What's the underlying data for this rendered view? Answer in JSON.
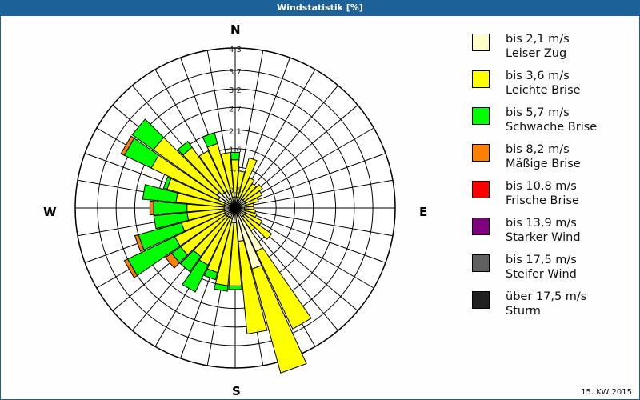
{
  "window": {
    "title": "Windstatistik [%]"
  },
  "footer": {
    "period": "15. KW 2015"
  },
  "compass": {
    "n": "N",
    "e": "E",
    "s": "S",
    "w": "W"
  },
  "legend": [
    {
      "range": "bis 2,1 m/s",
      "name": "Leiser Zug",
      "color": "#ffffc8"
    },
    {
      "range": "bis 3,6 m/s",
      "name": "Leichte Brise",
      "color": "#ffff00"
    },
    {
      "range": "bis 5,7 m/s",
      "name": "Schwache Brise",
      "color": "#00ff00"
    },
    {
      "range": "bis 8,2 m/s",
      "name": "Mäßige Brise",
      "color": "#ff8000"
    },
    {
      "range": "bis 10,8 m/s",
      "name": "Frische Brise",
      "color": "#ff0000"
    },
    {
      "range": "bis 13,9 m/s",
      "name": "Starker Wind",
      "color": "#800080"
    },
    {
      "range": "bis 17,5 m/s",
      "name": "Steifer Wind",
      "color": "#606060"
    },
    {
      "range": "über 17,5 m/s",
      "name": "Sturm",
      "color": "#202020"
    }
  ],
  "chart_data": {
    "type": "wind-rose",
    "title": "Windstatistik [%]",
    "subtitle": "15. KW 2015",
    "radial_ticks": [
      0.5,
      1.1,
      1.6,
      2.1,
      2.7,
      3.2,
      3.7,
      4.3
    ],
    "rmax": 4.3,
    "directions_deg": [
      0,
      10,
      20,
      30,
      40,
      50,
      60,
      70,
      80,
      90,
      100,
      110,
      120,
      130,
      140,
      150,
      160,
      170,
      180,
      190,
      200,
      210,
      220,
      230,
      240,
      250,
      260,
      270,
      280,
      290,
      300,
      310,
      320,
      330,
      340,
      350
    ],
    "series": [
      {
        "name": "bis 2,1 m/s",
        "values": [
          0.3,
          0.3,
          0.3,
          0.3,
          0.3,
          0.3,
          0.3,
          0.3,
          0.3,
          0.25,
          0.25,
          0.3,
          0.3,
          0.3,
          0.3,
          1.3,
          1.7,
          0.9,
          0.4,
          0.4,
          0.3,
          0.3,
          0.3,
          0.3,
          0.3,
          0.3,
          0.3,
          0.3,
          0.3,
          0.3,
          0.5,
          0.6,
          0.5,
          0.5,
          0.4,
          0.3
        ]
      },
      {
        "name": "bis 3,6 m/s",
        "values": [
          1.0,
          0.7,
          1.1,
          0.6,
          0.5,
          0.6,
          0.5,
          0.35,
          0.2,
          0.25,
          0.3,
          0.3,
          0.5,
          0.9,
          0.45,
          2.3,
          2.9,
          2.5,
          1.7,
          1.7,
          1.5,
          1.4,
          1.3,
          1.5,
          1.5,
          1.2,
          1.0,
          1.0,
          1.3,
          1.6,
          2.0,
          2.1,
          1.5,
          1.2,
          1.4,
          1.2
        ]
      },
      {
        "name": "bis 5,7 m/s",
        "values": [
          0.2,
          0,
          0,
          0,
          0,
          0,
          0,
          0,
          0,
          0,
          0,
          0,
          0,
          0,
          0,
          0,
          0,
          0,
          0.1,
          0.15,
          0.2,
          0.8,
          0.5,
          0.3,
          1.4,
          1.2,
          0.9,
          0.9,
          0.9,
          0.1,
          0.8,
          0.7,
          0.2,
          0,
          0.3,
          0
        ]
      },
      {
        "name": "bis 8,2 m/s",
        "values": [
          0,
          0,
          0,
          0,
          0,
          0,
          0,
          0,
          0,
          0,
          0,
          0,
          0,
          0,
          0,
          0,
          0,
          0,
          0,
          0,
          0,
          0,
          0,
          0.2,
          0.1,
          0.1,
          0,
          0.1,
          0,
          0,
          0.1,
          0,
          0,
          0,
          0,
          0
        ]
      }
    ]
  }
}
